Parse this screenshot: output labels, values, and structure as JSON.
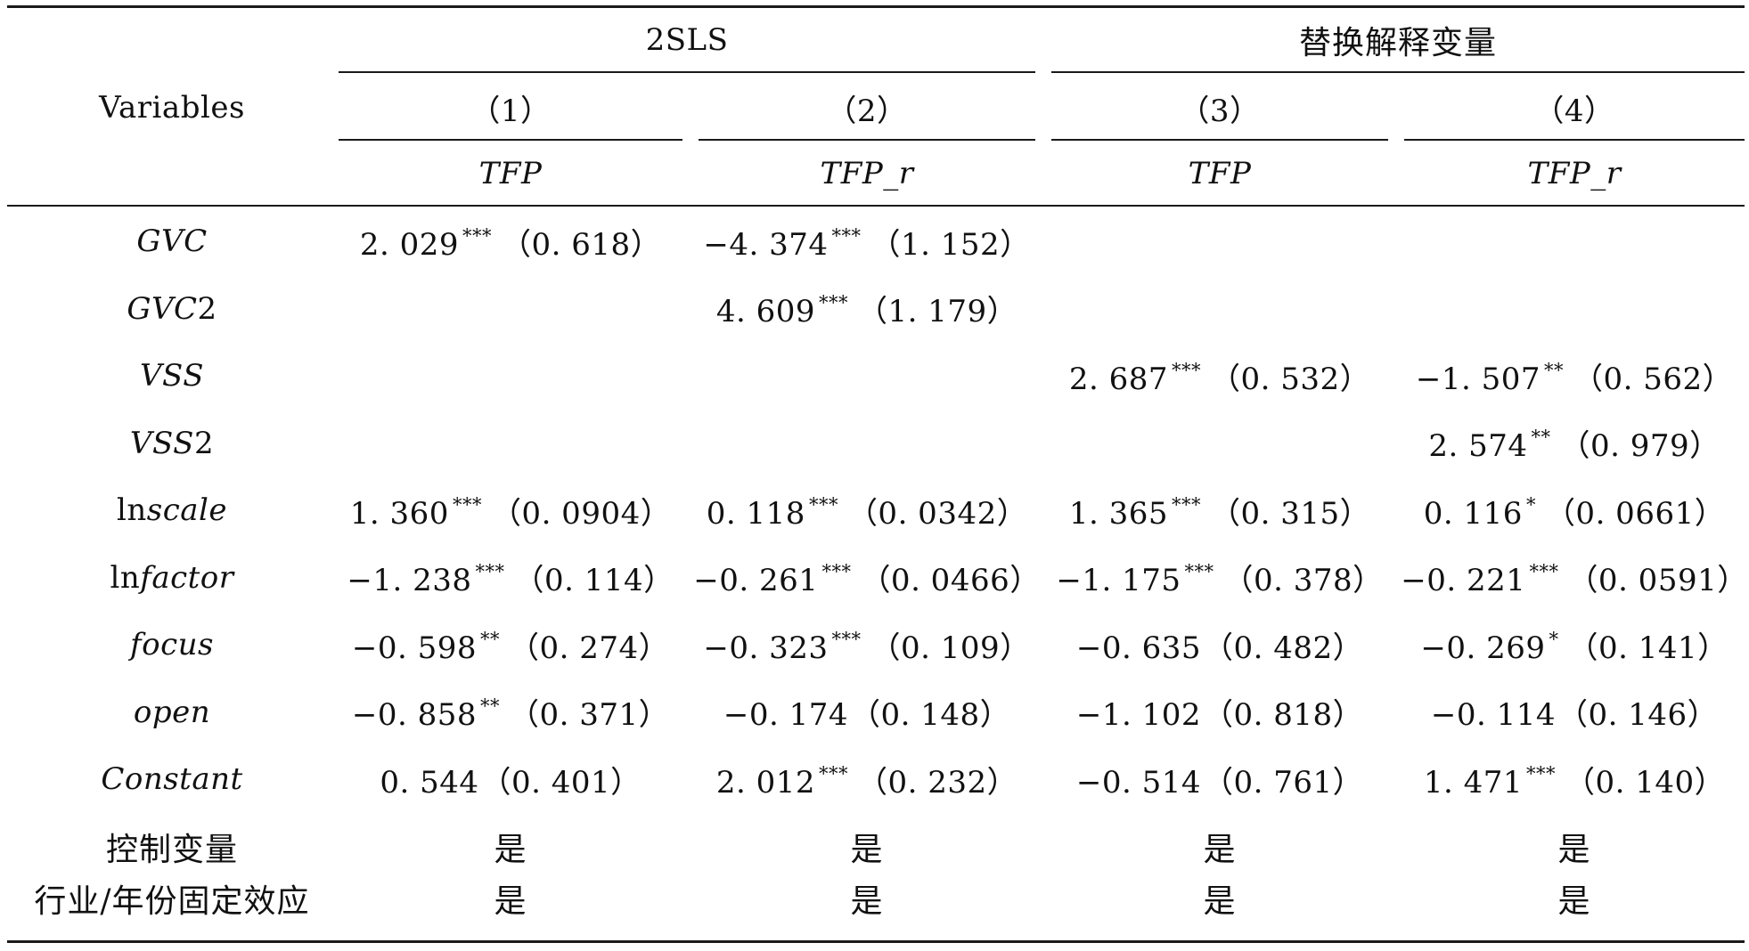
{
  "header": {
    "variables_label": "Variables",
    "group_2sls": "2SLS",
    "group_replace": "替换解释变量",
    "col_numbers": [
      "（1）",
      "（2）",
      "（3）",
      "（4）"
    ],
    "dep_vars": [
      "TFP",
      "TFP_r",
      "TFP",
      "TFP_r"
    ]
  },
  "rows": [
    {
      "name": "GVC",
      "name_parts": [
        {
          "t": "GVC",
          "i": true
        }
      ],
      "cells": [
        {
          "coef": "2. 029",
          "stars": "***",
          "se": "（0. 618）"
        },
        {
          "coef": "−4. 374",
          "stars": "***",
          "se": "（1. 152）"
        },
        {
          "coef": "",
          "stars": "",
          "se": ""
        },
        {
          "coef": "",
          "stars": "",
          "se": ""
        }
      ]
    },
    {
      "name": "GVC2",
      "name_parts": [
        {
          "t": "GVC",
          "i": true
        },
        {
          "t": "2",
          "i": false
        }
      ],
      "cells": [
        {
          "coef": "",
          "stars": "",
          "se": ""
        },
        {
          "coef": "4. 609",
          "stars": "***",
          "se": "（1. 179）"
        },
        {
          "coef": "",
          "stars": "",
          "se": ""
        },
        {
          "coef": "",
          "stars": "",
          "se": ""
        }
      ]
    },
    {
      "name": "VSS",
      "name_parts": [
        {
          "t": "VSS",
          "i": true
        }
      ],
      "cells": [
        {
          "coef": "",
          "stars": "",
          "se": ""
        },
        {
          "coef": "",
          "stars": "",
          "se": ""
        },
        {
          "coef": "2. 687",
          "stars": "***",
          "se": "（0. 532）"
        },
        {
          "coef": "−1. 507",
          "stars": "**",
          "se": "（0. 562）"
        }
      ]
    },
    {
      "name": "VSS2",
      "name_parts": [
        {
          "t": "VSS",
          "i": true
        },
        {
          "t": "2",
          "i": false
        }
      ],
      "cells": [
        {
          "coef": "",
          "stars": "",
          "se": ""
        },
        {
          "coef": "",
          "stars": "",
          "se": ""
        },
        {
          "coef": "",
          "stars": "",
          "se": ""
        },
        {
          "coef": "2. 574",
          "stars": "**",
          "se": "（0. 979）"
        }
      ]
    },
    {
      "name": "lnscale",
      "name_parts": [
        {
          "t": "ln",
          "i": false
        },
        {
          "t": "scale",
          "i": true
        }
      ],
      "cells": [
        {
          "coef": "1. 360",
          "stars": "***",
          "se": "（0. 0904）"
        },
        {
          "coef": "0. 118",
          "stars": "***",
          "se": "（0. 0342）"
        },
        {
          "coef": "1. 365",
          "stars": "***",
          "se": "（0. 315）"
        },
        {
          "coef": "0. 116",
          "stars": "*",
          "se": "（0. 0661）"
        }
      ]
    },
    {
      "name": "lnfactor",
      "name_parts": [
        {
          "t": "ln",
          "i": false
        },
        {
          "t": "factor",
          "i": true
        }
      ],
      "cells": [
        {
          "coef": "−1. 238",
          "stars": "***",
          "se": "（0. 114）"
        },
        {
          "coef": "−0. 261",
          "stars": "***",
          "se": "（0. 0466）"
        },
        {
          "coef": "−1. 175",
          "stars": "***",
          "se": "（0. 378）"
        },
        {
          "coef": "−0. 221",
          "stars": "***",
          "se": "（0. 0591）"
        }
      ]
    },
    {
      "name": "focus",
      "name_parts": [
        {
          "t": "focus",
          "i": true
        }
      ],
      "cells": [
        {
          "coef": "−0. 598",
          "stars": "**",
          "se": "（0. 274）"
        },
        {
          "coef": "−0. 323",
          "stars": "***",
          "se": "（0. 109）"
        },
        {
          "coef": "−0. 635",
          "stars": "",
          "se": "（0. 482）"
        },
        {
          "coef": "−0. 269",
          "stars": "*",
          "se": "（0. 141）"
        }
      ]
    },
    {
      "name": "open",
      "name_parts": [
        {
          "t": "open",
          "i": true
        }
      ],
      "cells": [
        {
          "coef": "−0. 858",
          "stars": "**",
          "se": "（0. 371）"
        },
        {
          "coef": "−0. 174",
          "stars": "",
          "se": "（0. 148）"
        },
        {
          "coef": "−1. 102",
          "stars": "",
          "se": "（0. 818）"
        },
        {
          "coef": "−0. 114",
          "stars": "",
          "se": "（0. 146）"
        }
      ]
    },
    {
      "name": "Constant",
      "name_parts": [
        {
          "t": "Constant",
          "i": true
        }
      ],
      "cells": [
        {
          "coef": "0. 544",
          "stars": "",
          "se": "（0. 401）"
        },
        {
          "coef": "2. 012",
          "stars": "***",
          "se": "（0. 232）"
        },
        {
          "coef": "−0. 514",
          "stars": "",
          "se": "（0. 761）"
        },
        {
          "coef": "1. 471",
          "stars": "***",
          "se": "（0. 140）"
        }
      ]
    }
  ],
  "footer_rows": [
    {
      "name": "控制变量",
      "cells": [
        "是",
        "是",
        "是",
        "是"
      ]
    },
    {
      "name": "行业/年份固定效应",
      "cells": [
        "是",
        "是",
        "是",
        "是"
      ]
    }
  ]
}
